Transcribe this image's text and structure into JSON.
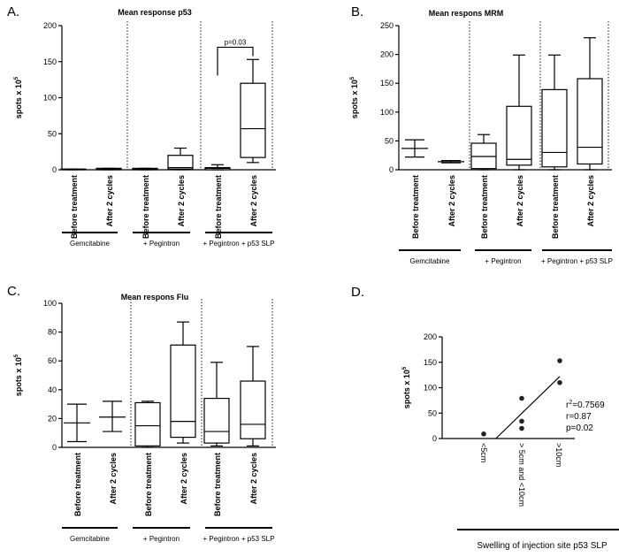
{
  "chart_data": [
    {
      "panel": "A.",
      "type": "box",
      "title": "Mean response p53",
      "ylabel": "spots x 10",
      "ylabel_sup": "5",
      "ylim": [
        0,
        200
      ],
      "yticks": [
        0,
        50,
        100,
        150,
        200
      ],
      "categories": [
        "Before treatment",
        "After 2 cycles",
        "Before treatment",
        "After 2 cycles",
        "Before treatment",
        "After 2 cycles"
      ],
      "groups": [
        "Gemcitabine",
        "+ Pegintron",
        "+ Pegintron + p53 SLP"
      ],
      "boxes": [
        {
          "style": "box",
          "min": 0,
          "q1": 0,
          "median": 0.5,
          "q3": 1,
          "max": 1
        },
        {
          "style": "box",
          "min": 0,
          "q1": 0,
          "median": 1,
          "q3": 2,
          "max": 2
        },
        {
          "style": "box",
          "min": 0,
          "q1": 0,
          "median": 1,
          "q3": 2,
          "max": 2
        },
        {
          "style": "box",
          "min": 0,
          "q1": 1,
          "median": 3,
          "q3": 20,
          "max": 30
        },
        {
          "style": "box",
          "min": 0,
          "q1": 0,
          "median": 2,
          "q3": 3,
          "max": 7
        },
        {
          "style": "box",
          "min": 10,
          "q1": 17,
          "median": 57,
          "q3": 120,
          "max": 153
        }
      ],
      "annotation": {
        "text": "p=0.03",
        "from": 4,
        "to": 5,
        "y": 170
      }
    },
    {
      "panel": "B.",
      "type": "box",
      "title": "Mean respons MRM",
      "ylabel": "spots x 10",
      "ylabel_sup": "5",
      "ylim": [
        0,
        250
      ],
      "yticks": [
        0,
        50,
        100,
        150,
        200,
        250
      ],
      "categories": [
        "Before treatment",
        "After 2 cycles",
        "Before treatment",
        "After 2 cycles",
        "Before treatment",
        "After 2 cycles"
      ],
      "groups": [
        "Gemcitabine",
        "+ Pegintron",
        "+ Pegintron + p53 SLP"
      ],
      "boxes": [
        {
          "style": "errorbar",
          "min": 22,
          "median": 37,
          "max": 52
        },
        {
          "style": "errorbar",
          "min": 12,
          "median": 14,
          "max": 16
        },
        {
          "style": "box",
          "min": 0,
          "q1": 2,
          "median": 23,
          "q3": 46,
          "max": 61
        },
        {
          "style": "box",
          "min": 0,
          "q1": 8,
          "median": 18,
          "q3": 110,
          "max": 199
        },
        {
          "style": "box",
          "min": 0,
          "q1": 5,
          "median": 30,
          "q3": 139,
          "max": 199
        },
        {
          "style": "box",
          "min": 0,
          "q1": 10,
          "median": 39,
          "q3": 158,
          "max": 229
        }
      ]
    },
    {
      "panel": "C.",
      "type": "box",
      "title": "Mean respons Flu",
      "ylabel": "spots x 10",
      "ylabel_sup": "5",
      "ylim": [
        0,
        100
      ],
      "yticks": [
        0,
        20,
        40,
        60,
        80,
        100
      ],
      "categories": [
        "Before treatment",
        "After 2 cycles",
        "Before treatment",
        "After 2 cycles",
        "Before treatment",
        "After 2 cycles"
      ],
      "groups": [
        "Gemcitabine",
        "+ Pegintron",
        "+ Pegintron + p53 SLP"
      ],
      "boxes": [
        {
          "style": "errorbar",
          "min": 4,
          "median": 17,
          "max": 30
        },
        {
          "style": "errorbar",
          "min": 11,
          "median": 21,
          "max": 32
        },
        {
          "style": "box",
          "min": 0,
          "q1": 1,
          "median": 15,
          "q3": 31,
          "max": 32
        },
        {
          "style": "box",
          "min": 3,
          "q1": 7,
          "median": 18,
          "q3": 71,
          "max": 87
        },
        {
          "style": "box",
          "min": 1,
          "q1": 3,
          "median": 11,
          "q3": 34,
          "max": 59
        },
        {
          "style": "box",
          "min": 1,
          "q1": 6,
          "median": 16,
          "q3": 46,
          "max": 70
        }
      ]
    },
    {
      "panel": "D.",
      "type": "scatter",
      "ylabel": "spots x 10",
      "ylabel_sup": "5",
      "ylim": [
        0,
        200
      ],
      "yticks": [
        0,
        50,
        100,
        150,
        200
      ],
      "categories": [
        "<5cm",
        "> 5cm and <10cm",
        ">10cm"
      ],
      "xlabel": "Swelling of injection site p53 SLP",
      "points": [
        {
          "x": 0,
          "y": 9
        },
        {
          "x": 1,
          "y": 79
        },
        {
          "x": 1,
          "y": 34
        },
        {
          "x": 1,
          "y": 20
        },
        {
          "x": 2,
          "y": 153
        },
        {
          "x": 2,
          "y": 110
        }
      ],
      "fit": {
        "x1": 0.32,
        "y1": 0,
        "x2": 2,
        "y2": 122
      },
      "stats": {
        "r2_base": "r",
        "r2_sup": "2",
        "r2_value": "=0.7569",
        "r": "r=0.87",
        "p": "p=0.02"
      }
    }
  ]
}
